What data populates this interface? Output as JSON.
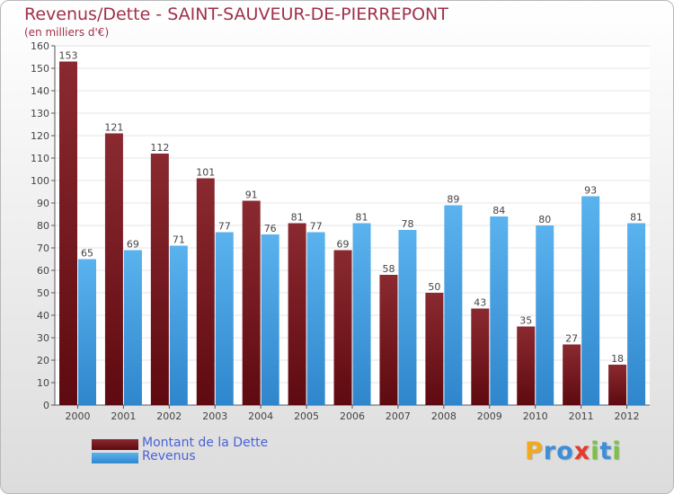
{
  "chart_data": {
    "type": "bar",
    "title": "Revenus/Dette - SAINT-SAUVEUR-DE-PIERREPONT",
    "subtitle": "(en milliers d'€)",
    "categories": [
      "2000",
      "2001",
      "2002",
      "2003",
      "2004",
      "2005",
      "2006",
      "2007",
      "2008",
      "2009",
      "2010",
      "2011",
      "2012"
    ],
    "series": [
      {
        "name": "Montant de la Dette",
        "color": "#7a1e24",
        "values": [
          153,
          121,
          112,
          101,
          91,
          81,
          69,
          58,
          50,
          43,
          35,
          27,
          18
        ]
      },
      {
        "name": "Revenus",
        "color": "#4aa3e6",
        "values": [
          65,
          69,
          71,
          77,
          76,
          77,
          81,
          78,
          89,
          84,
          80,
          93,
          81
        ]
      }
    ],
    "ylim": [
      0,
      160
    ],
    "yticks": [
      0,
      10,
      20,
      30,
      40,
      50,
      60,
      70,
      80,
      90,
      100,
      110,
      120,
      130,
      140,
      150,
      160
    ],
    "xlabel": "",
    "ylabel": "",
    "grid": true,
    "legend_position": "bottom-left"
  },
  "logo": {
    "letters": [
      "P",
      "r",
      "o",
      "x",
      "i",
      "t",
      "i"
    ],
    "colors": [
      "#f2a91c",
      "#3c8fd8",
      "#3c8fd8",
      "#e63a2a",
      "#7cc242",
      "#3c8fd8",
      "#7cc242"
    ]
  }
}
